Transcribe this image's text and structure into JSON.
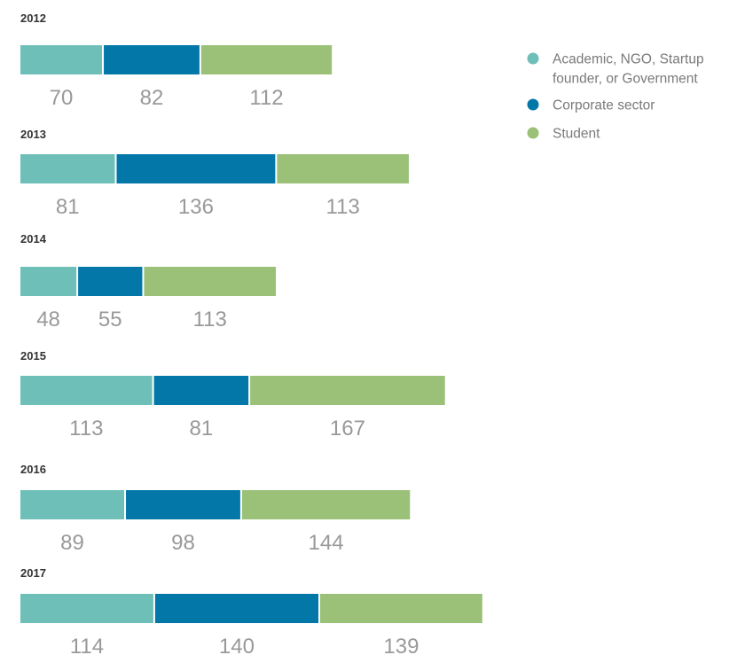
{
  "colors": {
    "academic": "#6fbfb9",
    "corporate": "#0277a8",
    "student": "#9ac177",
    "year_text": "#333333",
    "value_text": "#999999",
    "legend_text": "#7a7a7a"
  },
  "legend": [
    {
      "lines": [
        "Academic, NGO, Startup",
        "founder, or Government"
      ],
      "color_key": "academic"
    },
    {
      "lines": [
        "Corporate sector"
      ],
      "color_key": "corporate"
    },
    {
      "lines": [
        "Student"
      ],
      "color_key": "student"
    }
  ],
  "chart_data": {
    "type": "bar",
    "orientation": "horizontal",
    "stacked": true,
    "categories": [
      "2012",
      "2013",
      "2014",
      "2015",
      "2016",
      "2017"
    ],
    "series": [
      {
        "name": "Academic, NGO, Startup founder, or Government",
        "color_key": "academic",
        "values": [
          70,
          81,
          48,
          113,
          89,
          114
        ]
      },
      {
        "name": "Corporate sector",
        "color_key": "corporate",
        "values": [
          82,
          136,
          55,
          81,
          98,
          140
        ]
      },
      {
        "name": "Student",
        "color_key": "student",
        "values": [
          112,
          113,
          113,
          167,
          144,
          139
        ]
      }
    ],
    "legend_position": "top-right",
    "grid": false,
    "axes_visible": false
  }
}
